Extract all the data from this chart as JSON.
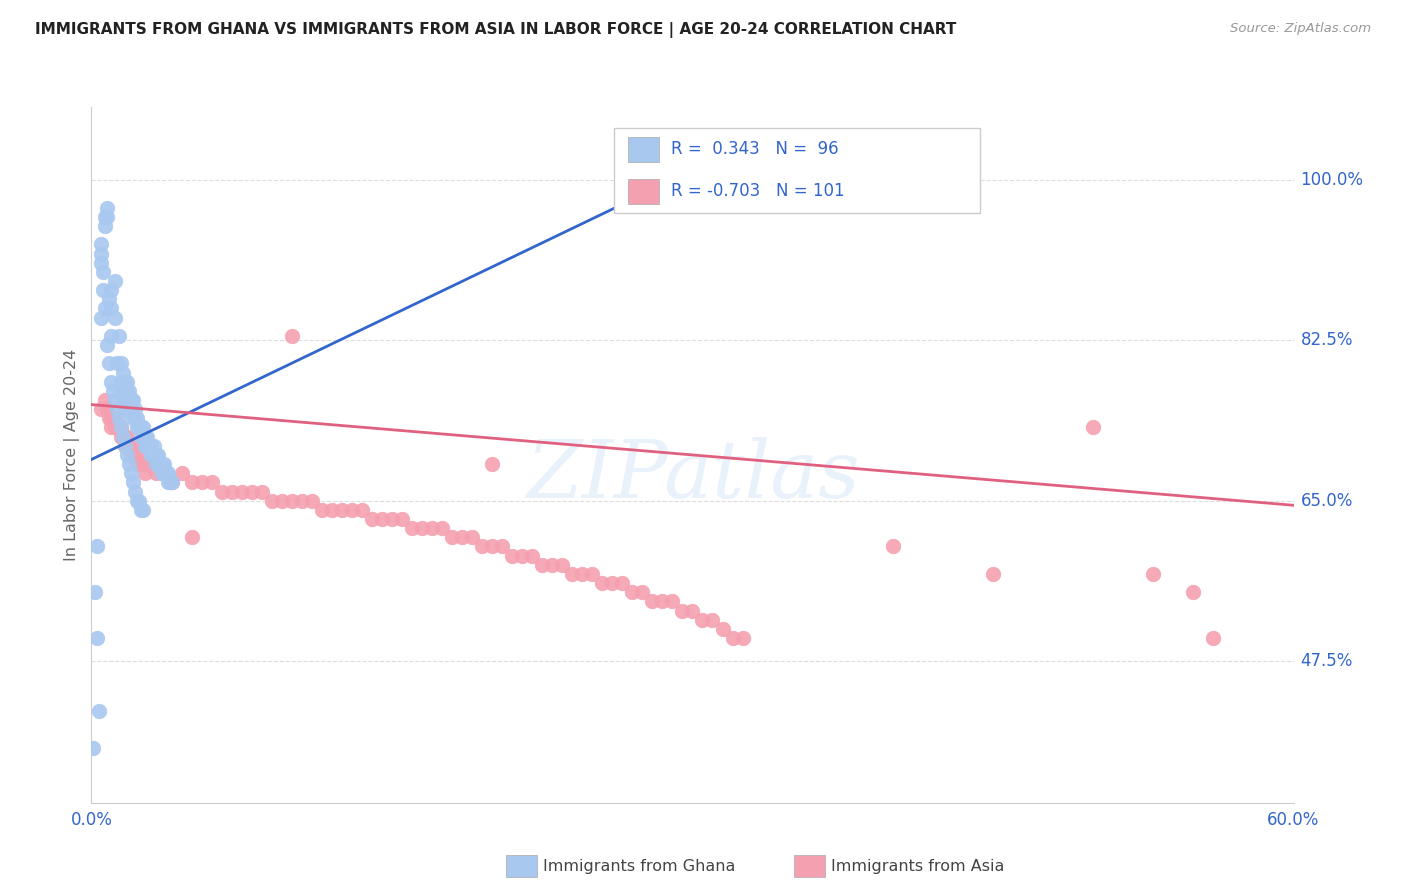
{
  "title": "IMMIGRANTS FROM GHANA VS IMMIGRANTS FROM ASIA IN LABOR FORCE | AGE 20-24 CORRELATION CHART",
  "source": "Source: ZipAtlas.com",
  "ylabel": "In Labor Force | Age 20-24",
  "ytick_labels": [
    "100.0%",
    "82.5%",
    "65.0%",
    "47.5%"
  ],
  "ytick_vals": [
    1.0,
    0.825,
    0.65,
    0.475
  ],
  "xlim": [
    0.0,
    0.6
  ],
  "ylim": [
    0.32,
    1.08
  ],
  "ghana_R": 0.343,
  "ghana_N": 96,
  "asia_R": -0.703,
  "asia_N": 101,
  "ghana_color": "#a8c8f0",
  "asia_color": "#f5a0b0",
  "ghana_trend_color": "#3366cc",
  "asia_trend_color": "#e06080",
  "background_color": "#ffffff",
  "grid_color": "#dddddd",
  "title_color": "#222222",
  "axis_label_color": "#3366cc",
  "watermark": "ZIPatlas",
  "ghana_scatter": [
    [
      0.001,
      0.38
    ],
    [
      0.002,
      0.55
    ],
    [
      0.003,
      0.5
    ],
    [
      0.003,
      0.6
    ],
    [
      0.004,
      0.42
    ],
    [
      0.005,
      0.85
    ],
    [
      0.005,
      0.91
    ],
    [
      0.005,
      0.92
    ],
    [
      0.005,
      0.93
    ],
    [
      0.006,
      0.88
    ],
    [
      0.006,
      0.9
    ],
    [
      0.007,
      0.86
    ],
    [
      0.007,
      0.95
    ],
    [
      0.007,
      0.96
    ],
    [
      0.008,
      0.82
    ],
    [
      0.008,
      0.96
    ],
    [
      0.008,
      0.97
    ],
    [
      0.009,
      0.8
    ],
    [
      0.009,
      0.87
    ],
    [
      0.01,
      0.78
    ],
    [
      0.01,
      0.83
    ],
    [
      0.01,
      0.86
    ],
    [
      0.01,
      0.88
    ],
    [
      0.011,
      0.77
    ],
    [
      0.012,
      0.76
    ],
    [
      0.012,
      0.85
    ],
    [
      0.012,
      0.89
    ],
    [
      0.013,
      0.75
    ],
    [
      0.013,
      0.8
    ],
    [
      0.014,
      0.74
    ],
    [
      0.014,
      0.83
    ],
    [
      0.015,
      0.73
    ],
    [
      0.015,
      0.77
    ],
    [
      0.015,
      0.78
    ],
    [
      0.015,
      0.8
    ],
    [
      0.016,
      0.72
    ],
    [
      0.016,
      0.76
    ],
    [
      0.016,
      0.79
    ],
    [
      0.017,
      0.71
    ],
    [
      0.017,
      0.75
    ],
    [
      0.017,
      0.78
    ],
    [
      0.018,
      0.7
    ],
    [
      0.018,
      0.77
    ],
    [
      0.018,
      0.78
    ],
    [
      0.019,
      0.69
    ],
    [
      0.019,
      0.75
    ],
    [
      0.019,
      0.77
    ],
    [
      0.02,
      0.68
    ],
    [
      0.02,
      0.75
    ],
    [
      0.02,
      0.76
    ],
    [
      0.021,
      0.67
    ],
    [
      0.021,
      0.74
    ],
    [
      0.021,
      0.76
    ],
    [
      0.022,
      0.66
    ],
    [
      0.022,
      0.74
    ],
    [
      0.022,
      0.75
    ],
    [
      0.023,
      0.65
    ],
    [
      0.023,
      0.73
    ],
    [
      0.023,
      0.74
    ],
    [
      0.024,
      0.65
    ],
    [
      0.024,
      0.73
    ],
    [
      0.025,
      0.64
    ],
    [
      0.025,
      0.72
    ],
    [
      0.025,
      0.73
    ],
    [
      0.026,
      0.64
    ],
    [
      0.026,
      0.72
    ],
    [
      0.026,
      0.73
    ],
    [
      0.027,
      0.71
    ],
    [
      0.027,
      0.72
    ],
    [
      0.028,
      0.71
    ],
    [
      0.028,
      0.72
    ],
    [
      0.029,
      0.71
    ],
    [
      0.03,
      0.7
    ],
    [
      0.03,
      0.71
    ],
    [
      0.031,
      0.7
    ],
    [
      0.031,
      0.71
    ],
    [
      0.032,
      0.69
    ],
    [
      0.032,
      0.7
    ],
    [
      0.033,
      0.69
    ],
    [
      0.033,
      0.7
    ],
    [
      0.034,
      0.69
    ],
    [
      0.035,
      0.68
    ],
    [
      0.035,
      0.69
    ],
    [
      0.036,
      0.68
    ],
    [
      0.036,
      0.69
    ],
    [
      0.037,
      0.68
    ],
    [
      0.038,
      0.67
    ],
    [
      0.038,
      0.68
    ],
    [
      0.039,
      0.67
    ],
    [
      0.04,
      0.67
    ],
    [
      0.29,
      1.0
    ]
  ],
  "asia_scatter": [
    [
      0.005,
      0.75
    ],
    [
      0.007,
      0.76
    ],
    [
      0.008,
      0.75
    ],
    [
      0.009,
      0.74
    ],
    [
      0.01,
      0.73
    ],
    [
      0.01,
      0.74
    ],
    [
      0.011,
      0.74
    ],
    [
      0.012,
      0.73
    ],
    [
      0.012,
      0.74
    ],
    [
      0.013,
      0.73
    ],
    [
      0.014,
      0.73
    ],
    [
      0.015,
      0.72
    ],
    [
      0.015,
      0.73
    ],
    [
      0.016,
      0.72
    ],
    [
      0.017,
      0.71
    ],
    [
      0.017,
      0.72
    ],
    [
      0.018,
      0.71
    ],
    [
      0.018,
      0.72
    ],
    [
      0.019,
      0.71
    ],
    [
      0.02,
      0.7
    ],
    [
      0.02,
      0.71
    ],
    [
      0.021,
      0.71
    ],
    [
      0.022,
      0.7
    ],
    [
      0.022,
      0.71
    ],
    [
      0.023,
      0.69
    ],
    [
      0.023,
      0.7
    ],
    [
      0.024,
      0.7
    ],
    [
      0.025,
      0.69
    ],
    [
      0.025,
      0.7
    ],
    [
      0.026,
      0.69
    ],
    [
      0.027,
      0.68
    ],
    [
      0.028,
      0.69
    ],
    [
      0.03,
      0.69
    ],
    [
      0.032,
      0.68
    ],
    [
      0.035,
      0.68
    ],
    [
      0.04,
      0.67
    ],
    [
      0.045,
      0.68
    ],
    [
      0.05,
      0.61
    ],
    [
      0.05,
      0.67
    ],
    [
      0.055,
      0.67
    ],
    [
      0.06,
      0.67
    ],
    [
      0.065,
      0.66
    ],
    [
      0.07,
      0.66
    ],
    [
      0.075,
      0.66
    ],
    [
      0.08,
      0.66
    ],
    [
      0.085,
      0.66
    ],
    [
      0.09,
      0.65
    ],
    [
      0.095,
      0.65
    ],
    [
      0.1,
      0.65
    ],
    [
      0.1,
      0.83
    ],
    [
      0.105,
      0.65
    ],
    [
      0.11,
      0.65
    ],
    [
      0.115,
      0.64
    ],
    [
      0.12,
      0.64
    ],
    [
      0.125,
      0.64
    ],
    [
      0.13,
      0.64
    ],
    [
      0.135,
      0.64
    ],
    [
      0.14,
      0.63
    ],
    [
      0.145,
      0.63
    ],
    [
      0.15,
      0.63
    ],
    [
      0.155,
      0.63
    ],
    [
      0.16,
      0.62
    ],
    [
      0.165,
      0.62
    ],
    [
      0.17,
      0.62
    ],
    [
      0.175,
      0.62
    ],
    [
      0.18,
      0.61
    ],
    [
      0.185,
      0.61
    ],
    [
      0.19,
      0.61
    ],
    [
      0.195,
      0.6
    ],
    [
      0.2,
      0.6
    ],
    [
      0.2,
      0.69
    ],
    [
      0.205,
      0.6
    ],
    [
      0.21,
      0.59
    ],
    [
      0.215,
      0.59
    ],
    [
      0.22,
      0.59
    ],
    [
      0.225,
      0.58
    ],
    [
      0.23,
      0.58
    ],
    [
      0.235,
      0.58
    ],
    [
      0.24,
      0.57
    ],
    [
      0.245,
      0.57
    ],
    [
      0.25,
      0.57
    ],
    [
      0.255,
      0.56
    ],
    [
      0.26,
      0.56
    ],
    [
      0.265,
      0.56
    ],
    [
      0.27,
      0.55
    ],
    [
      0.275,
      0.55
    ],
    [
      0.28,
      0.54
    ],
    [
      0.285,
      0.54
    ],
    [
      0.29,
      0.54
    ],
    [
      0.295,
      0.53
    ],
    [
      0.3,
      0.53
    ],
    [
      0.305,
      0.52
    ],
    [
      0.31,
      0.52
    ],
    [
      0.315,
      0.51
    ],
    [
      0.32,
      0.5
    ],
    [
      0.325,
      0.5
    ],
    [
      0.4,
      0.6
    ],
    [
      0.45,
      0.57
    ],
    [
      0.5,
      0.73
    ],
    [
      0.53,
      0.57
    ],
    [
      0.55,
      0.55
    ],
    [
      0.56,
      0.5
    ]
  ],
  "ghana_trend_x": [
    0.0,
    0.29
  ],
  "ghana_trend_y": [
    0.695,
    1.0
  ],
  "asia_trend_x": [
    0.0,
    0.6
  ],
  "asia_trend_y": [
    0.755,
    0.645
  ]
}
